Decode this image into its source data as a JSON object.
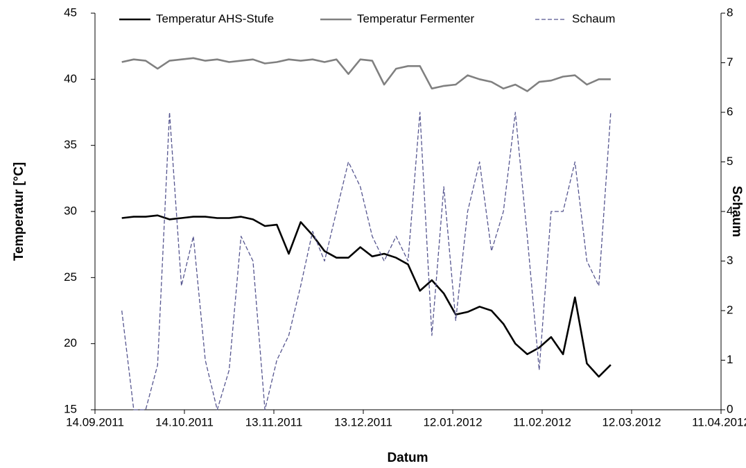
{
  "chart_data": {
    "type": "line",
    "x_label": "Datum",
    "y_label": "Temperatur [°C]",
    "y2_label": "Schaum",
    "x": [
      "23.09.2011",
      "27.09.2011",
      "01.10.2011",
      "05.10.2011",
      "09.10.2011",
      "13.10.2011",
      "17.10.2011",
      "21.10.2011",
      "25.10.2011",
      "29.10.2011",
      "02.11.2011",
      "06.11.2011",
      "10.11.2011",
      "14.11.2011",
      "18.11.2011",
      "22.11.2011",
      "26.11.2011",
      "30.11.2011",
      "04.12.2011",
      "08.12.2011",
      "12.12.2011",
      "16.12.2011",
      "20.12.2011",
      "24.12.2011",
      "28.12.2011",
      "01.01.2012",
      "05.01.2012",
      "09.01.2012",
      "13.01.2012",
      "17.01.2012",
      "21.01.2012",
      "25.01.2012",
      "29.01.2012",
      "02.02.2012",
      "06.02.2012",
      "10.02.2012",
      "14.02.2012",
      "18.02.2012",
      "22.02.2012",
      "26.02.2012",
      "01.03.2012",
      "05.03.2012"
    ],
    "series": [
      {
        "name": "Temperatur AHS-Stufe",
        "color": "#000000",
        "dash": false,
        "axis": "y",
        "values": [
          29.5,
          29.6,
          29.6,
          29.7,
          29.4,
          29.5,
          29.6,
          29.6,
          29.5,
          29.5,
          29.6,
          29.4,
          28.9,
          29.0,
          26.8,
          29.2,
          28.2,
          27.0,
          26.5,
          26.5,
          27.3,
          26.6,
          26.8,
          26.5,
          26.0,
          24.0,
          24.8,
          23.8,
          22.2,
          22.4,
          22.8,
          22.5,
          21.5,
          20.0,
          19.2,
          19.7,
          20.5,
          19.2,
          23.5,
          18.5,
          17.5,
          18.4
        ]
      },
      {
        "name": "Temperatur Fermenter",
        "color": "#808080",
        "dash": false,
        "axis": "y",
        "values": [
          41.3,
          41.5,
          41.4,
          40.8,
          41.4,
          41.5,
          41.6,
          41.4,
          41.5,
          41.3,
          41.4,
          41.5,
          41.2,
          41.3,
          41.5,
          41.4,
          41.5,
          41.3,
          41.5,
          40.4,
          41.5,
          41.4,
          39.6,
          40.8,
          41.0,
          41.0,
          39.3,
          39.5,
          39.6,
          40.3,
          40.0,
          39.8,
          39.3,
          39.6,
          39.1,
          39.8,
          39.9,
          40.2,
          40.3,
          39.6,
          40.0,
          40.0
        ]
      },
      {
        "name": "Schaum",
        "color": "#55558f",
        "dash": true,
        "axis": "y2",
        "values": [
          2.0,
          0,
          0,
          0.9,
          6.0,
          2.5,
          3.5,
          1.0,
          0,
          0.8,
          3.5,
          3.0,
          0,
          1.0,
          1.5,
          2.5,
          3.6,
          3.0,
          4.0,
          5.0,
          4.5,
          3.5,
          3.0,
          3.5,
          3.0,
          6.0,
          1.5,
          4.5,
          1.8,
          4.0,
          5.0,
          3.2,
          4.0,
          6.0,
          3.5,
          0.8,
          4.0,
          4.0,
          5.0,
          3.0,
          2.5,
          6.0
        ]
      }
    ],
    "xlim": [
      "14.09.2011",
      "11.04.2012"
    ],
    "xticks": [
      "14.09.2011",
      "14.10.2011",
      "13.11.2011",
      "13.12.2011",
      "12.01.2012",
      "11.02.2012",
      "12.03.2012",
      "11.04.2012"
    ],
    "ylim": [
      15,
      45
    ],
    "yticks": [
      15,
      20,
      25,
      30,
      35,
      40,
      45
    ],
    "y2lim": [
      0,
      8
    ],
    "y2ticks": [
      0,
      1,
      2,
      3,
      4,
      5,
      6,
      7,
      8
    ],
    "legend": "top",
    "grid": false
  }
}
